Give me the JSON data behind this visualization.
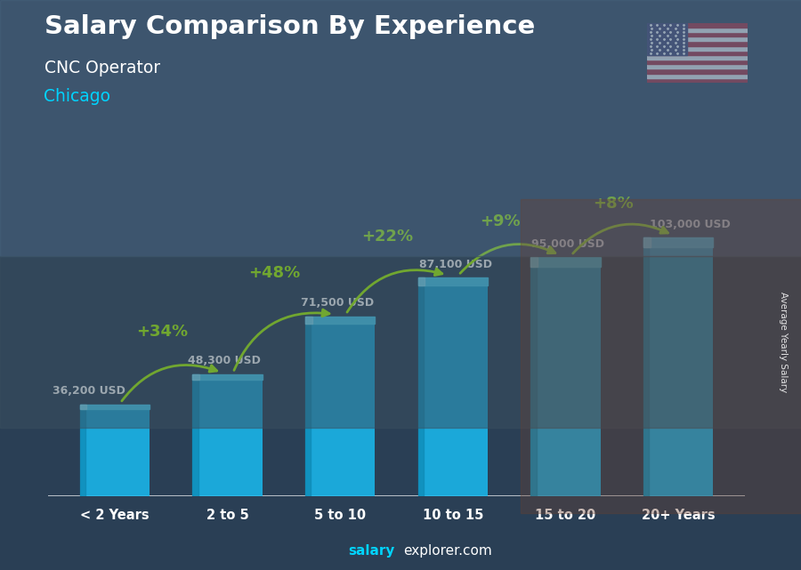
{
  "title": "Salary Comparison By Experience",
  "subtitle": "CNC Operator",
  "city": "Chicago",
  "categories": [
    "< 2 Years",
    "2 to 5",
    "5 to 10",
    "10 to 15",
    "15 to 20",
    "20+ Years"
  ],
  "values": [
    36200,
    48300,
    71500,
    87100,
    95000,
    103000
  ],
  "value_labels": [
    "36,200 USD",
    "48,300 USD",
    "71,500 USD",
    "87,100 USD",
    "95,000 USD",
    "103,000 USD"
  ],
  "pct_labels": [
    "+34%",
    "+48%",
    "+22%",
    "+9%",
    "+8%"
  ],
  "bar_color_main": "#1ab8ec",
  "bar_color_light": "#4dd4f8",
  "bar_color_dark": "#0e8ab5",
  "pct_color": "#aaff00",
  "value_color": "#ffffff",
  "title_color": "#ffffff",
  "subtitle_color": "#ffffff",
  "city_color": "#00d4ff",
  "footer_salary_color": "#00d4ff",
  "footer_explorer_color": "#ffffff",
  "footer": "salaryexplorer.com",
  "ylabel": "Average Yearly Salary",
  "bg_color": "#2a3f55",
  "ylim_max": 118000,
  "bar_width": 0.62
}
